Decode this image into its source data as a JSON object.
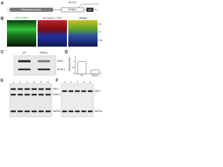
{
  "panels": {
    "a": {
      "label": "A",
      "sequence": "...MCVLL*",
      "elements": [
        "Rhodopsin promoter",
        "RK561L",
        "pA"
      ]
    },
    "b": {
      "label": "B",
      "titles": [
        "eGFP (GRK1)",
        "1D4 (opsin) + DAPI",
        "Merged"
      ],
      "layers": [
        "OS",
        "IS",
        "ONL"
      ]
    },
    "c": {
      "label": "C",
      "lanes": [
        "WT",
        "RK561L"
      ],
      "bands": [
        "GRK1",
        "RGS9-1"
      ]
    },
    "d": {
      "label": "D",
      "chart": {
        "type": "bar",
        "ylabel": "GRK1/GAPDH",
        "categories": [
          "WT",
          "RK561L"
        ],
        "values": [
          1,
          0.3
        ],
        "color": "#ffffff",
        "ylim": [
          0,
          1.5
        ],
        "yticks": [
          0,
          0.5,
          1
        ]
      }
    },
    "e": {
      "label": "E",
      "lanes": [
        "1",
        "2",
        "3",
        "4",
        "5",
        "6"
      ],
      "bands": [
        "GRK1",
        "RGS9-1",
        "GAPDH"
      ]
    },
    "f": {
      "label": "F",
      "lanes": [
        "1",
        "2",
        "3",
        "4",
        "5"
      ],
      "bands": [
        "GRK1",
        "GAPDH"
      ]
    }
  }
}
